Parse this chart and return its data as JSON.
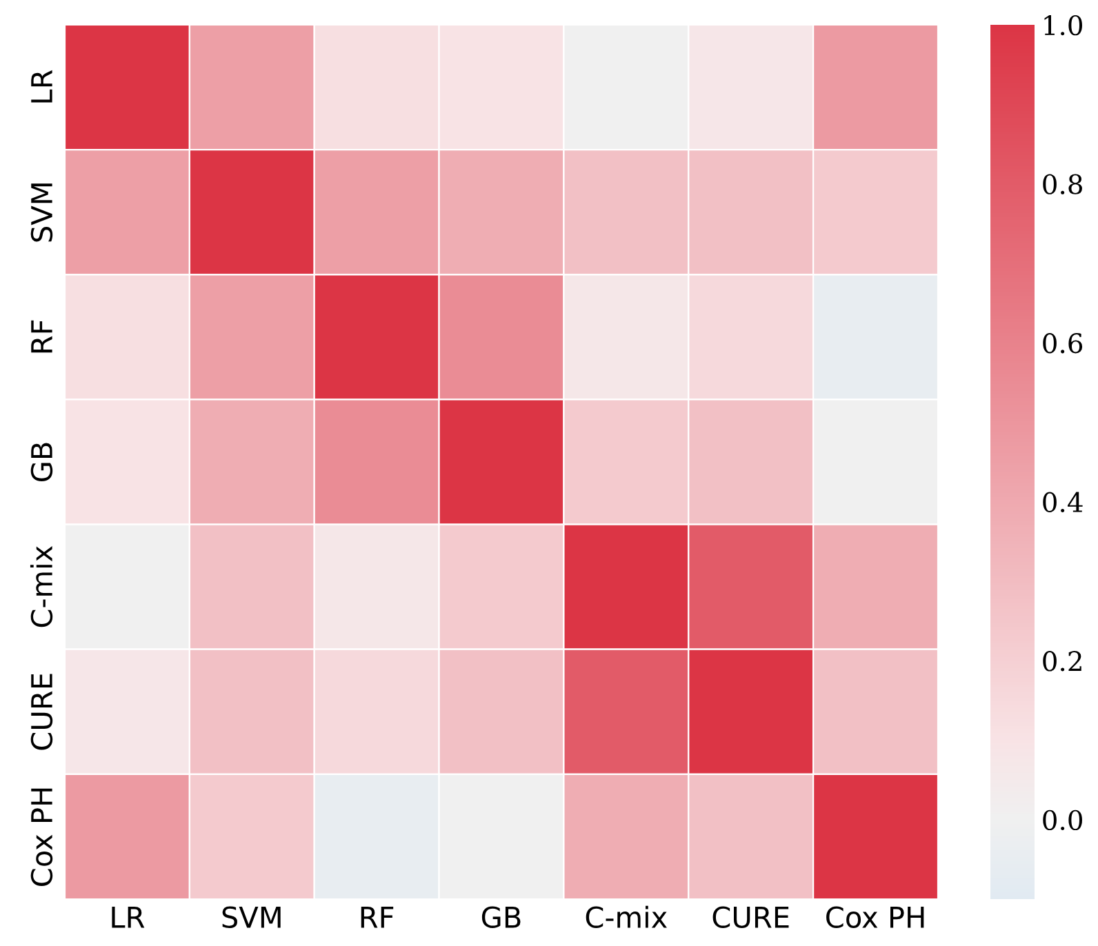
{
  "chart_data": {
    "type": "heatmap",
    "categories": [
      "LR",
      "SVM",
      "RF",
      "GB",
      "C-mix",
      "CURE",
      "Cox PH"
    ],
    "y_categories": [
      "LR",
      "SVM",
      "RF",
      "GB",
      "C-mix",
      "CURE",
      "Cox PH"
    ],
    "cells": [
      [
        1.0,
        0.45,
        0.12,
        0.1,
        0.0,
        0.08,
        0.48
      ],
      [
        0.45,
        1.0,
        0.45,
        0.38,
        0.28,
        0.28,
        0.23
      ],
      [
        0.12,
        0.45,
        1.0,
        0.55,
        0.07,
        0.15,
        -0.05
      ],
      [
        0.1,
        0.38,
        0.55,
        1.0,
        0.23,
        0.28,
        0.0
      ],
      [
        0.0,
        0.28,
        0.07,
        0.23,
        1.0,
        0.8,
        0.38
      ],
      [
        0.08,
        0.28,
        0.15,
        0.28,
        0.8,
        1.0,
        0.28
      ],
      [
        0.48,
        0.23,
        -0.05,
        0.0,
        0.38,
        0.28,
        1.0
      ]
    ],
    "clim": [
      -0.1,
      1.0
    ],
    "cticks": [
      {
        "value": 0,
        "label": "0.0"
      },
      {
        "value": 0.2,
        "label": "0.2"
      },
      {
        "value": 0.4,
        "label": "0.4"
      },
      {
        "value": 0.6,
        "label": "0.6"
      },
      {
        "value": 0.8,
        "label": "0.8"
      },
      {
        "value": 1,
        "label": "1.0"
      }
    ]
  }
}
